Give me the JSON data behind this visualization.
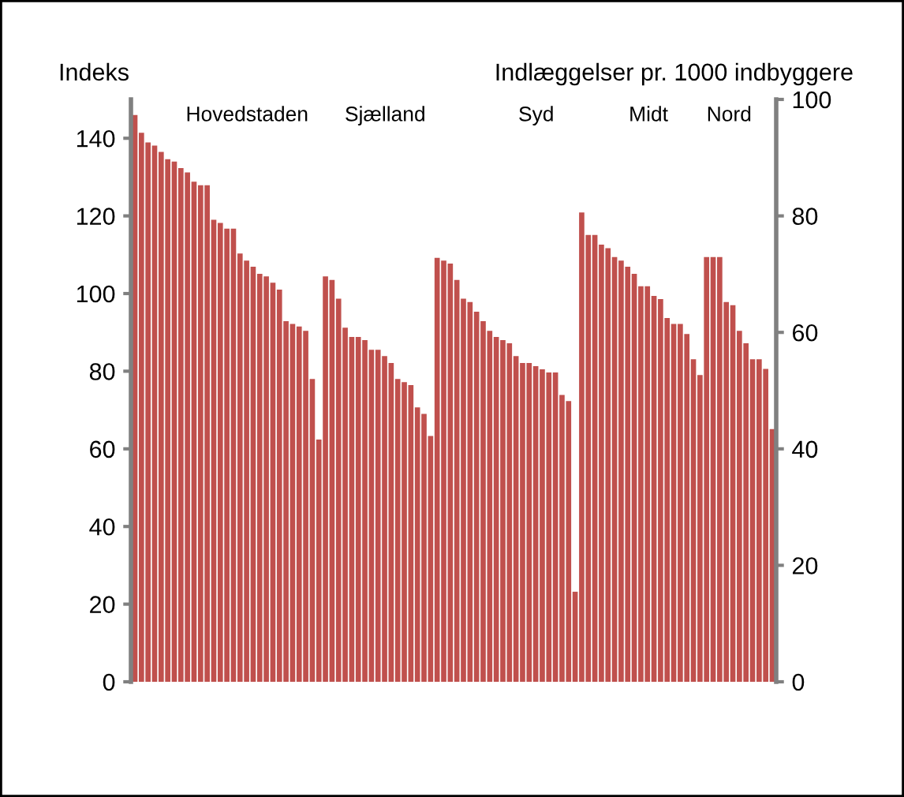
{
  "chart_data": {
    "type": "bar",
    "ylabel": "Indeks",
    "y2label": "Indlæggelser pr. 1000 indbyggere",
    "annotations": [
      "Hovedstaden",
      "Sjælland",
      "Syd",
      "Midt",
      "Nord"
    ],
    "categories": [
      null,
      null,
      null,
      null,
      null,
      null,
      null,
      null,
      null,
      null,
      null,
      null,
      null,
      null,
      null,
      null,
      null,
      null,
      null,
      null,
      null,
      null,
      null,
      null,
      null,
      null,
      null,
      null,
      null,
      null,
      null,
      null,
      null,
      null,
      null,
      null,
      null,
      null,
      null,
      null,
      null,
      null,
      null,
      null,
      null,
      null,
      null,
      null,
      null,
      null,
      null,
      null,
      null,
      null,
      null,
      null,
      null,
      null,
      null,
      null,
      null,
      null,
      null,
      null,
      null,
      null,
      null,
      null,
      null,
      null,
      null,
      null,
      null,
      null,
      null,
      null,
      null,
      null,
      null,
      null,
      null,
      null,
      null,
      null,
      null,
      null,
      null,
      null,
      null,
      null,
      null,
      null,
      null,
      null,
      null,
      null,
      null,
      null
    ],
    "values": [
      146,
      141.4,
      138.9,
      138.1,
      136.5,
      134.6,
      134,
      132.3,
      131.2,
      128.8,
      127.9,
      127.9,
      119,
      118.2,
      116.7,
      116.7,
      110.3,
      108.5,
      106.9,
      105.1,
      104.4,
      102.8,
      101,
      92.9,
      92.2,
      91.5,
      90.4,
      78,
      62.4,
      104.4,
      103.5,
      98.7,
      91.2,
      88.8,
      88.8,
      88,
      85.5,
      85.5,
      83.9,
      82.1,
      78,
      77.2,
      76.4,
      70.7,
      69,
      63.3,
      109.2,
      108.5,
      107.7,
      103.5,
      98.7,
      97.8,
      95.3,
      92.9,
      90.4,
      88.8,
      88,
      87.2,
      83.9,
      82.1,
      82.1,
      81.3,
      80.5,
      79.7,
      79.7,
      73.9,
      72.3,
      23.2,
      120.9,
      115.1,
      115.1,
      112.6,
      111.7,
      109.4,
      108.5,
      106.9,
      105.1,
      101.9,
      101.9,
      99.4,
      98.6,
      93.7,
      92.2,
      92.2,
      89.6,
      83.1,
      79,
      109.4,
      109.4,
      109.4,
      97.8,
      97,
      90.4,
      87.2,
      83.1,
      83.1,
      80.6,
      65.1
    ],
    "color": "#c0504d",
    "ylim": [
      0,
      150
    ],
    "yticks": [
      0,
      20,
      40,
      60,
      80,
      100,
      120,
      140
    ],
    "y2lim": [
      0,
      100
    ],
    "y2ticks": [
      0,
      20,
      40,
      60,
      80,
      100
    ],
    "grid": false,
    "legend": false
  }
}
